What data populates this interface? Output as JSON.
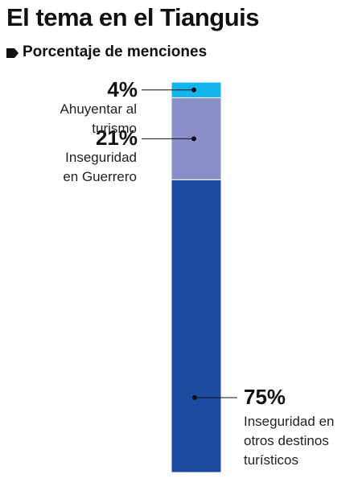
{
  "chart_data": {
    "type": "stacked-bar",
    "title": "El tema en el Tianguis",
    "subtitle": "Porcentaje de menciones",
    "series": [
      {
        "name": "Inseguridad en otros destinos turísticos",
        "color": "#1c4ba0",
        "values": [
          75
        ],
        "value_labels": [
          "75%"
        ]
      },
      {
        "name": "Inseguridad en Guerrero",
        "color": "#8b8fc9",
        "values": [
          21
        ],
        "value_labels": [
          "21%"
        ]
      },
      {
        "name": "Ahuyentar al turismo",
        "color": "#14b4ec",
        "values": [
          4
        ],
        "value_labels": [
          "4%"
        ]
      }
    ]
  }
}
